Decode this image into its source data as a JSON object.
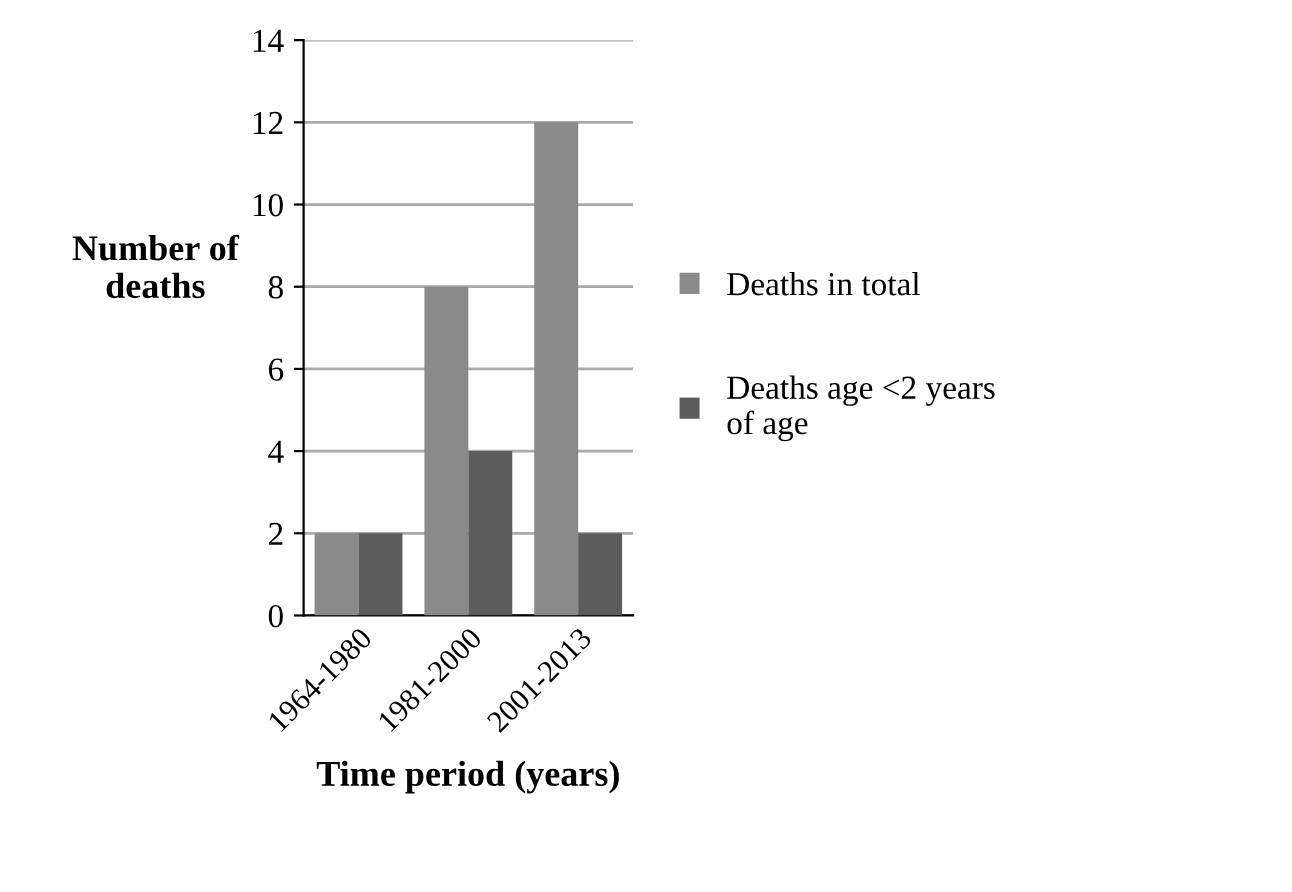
{
  "chart_data": {
    "type": "bar",
    "xlabel": "Time period (years)",
    "ylabel": "Number of\ndeaths",
    "categories": [
      "1964-1980",
      "1981-2000",
      "2001-2013"
    ],
    "series": [
      {
        "name": "Deaths in total",
        "color": "#8a8a8a",
        "values": [
          2,
          8,
          12
        ]
      },
      {
        "name": "Deaths age <2 years\nof age",
        "color": "#5c5c5c",
        "values": [
          2,
          4,
          2
        ]
      }
    ],
    "ylim": [
      0,
      14
    ],
    "yticks": [
      0,
      2,
      4,
      6,
      8,
      10,
      12,
      14
    ],
    "grid": "y",
    "legend": "right"
  }
}
